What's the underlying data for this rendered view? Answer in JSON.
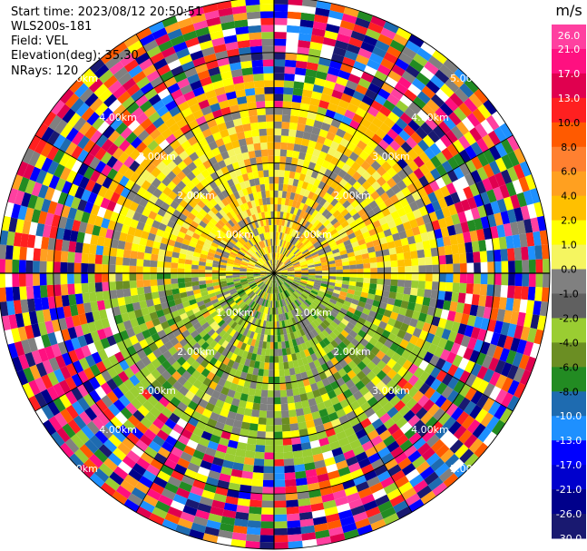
{
  "header": {
    "start_time": "Start time: 2023/08/12 20:50:51",
    "instrument": "WLS200s-181",
    "field": "Field: VEL",
    "elevation": "Elevation(deg): 35.30",
    "nrays": "NRays: 120"
  },
  "colorbar": {
    "unit": "m/s",
    "ticks": [
      "26.0",
      "21.0",
      "17.0",
      "13.0",
      "10.0",
      "8.0",
      "6.0",
      "4.0",
      "2.0",
      "1.0",
      "0.0",
      "-1.0",
      "-2.0",
      "-4.0",
      "-6.0",
      "-8.0",
      "-10.0",
      "-13.0",
      "-17.0",
      "-21.0",
      "-26.0",
      "-30.0"
    ],
    "colors": [
      "#ff40a0",
      "#ff1080",
      "#e0004f",
      "#ff2020",
      "#ff5a00",
      "#ff8030",
      "#ffa020",
      "#ffc000",
      "#ffff00",
      "#f5f560",
      "#808080",
      "#606060",
      "#9acd32",
      "#6b8e23",
      "#228b22",
      "#1e6bb0",
      "#1e90ff",
      "#0000ff",
      "#0000cd",
      "#00008b",
      "#191970"
    ]
  },
  "chart_data": {
    "type": "ppi",
    "title": "",
    "field": "VEL",
    "units": "m/s",
    "n_rays": 120,
    "elevation_deg": 35.3,
    "range_rings_km": [
      1.0,
      2.0,
      3.0,
      4.0,
      5.0
    ],
    "ring_labels": [
      "1.00km",
      "2.00km",
      "3.00km",
      "4.00km",
      "5.00km"
    ],
    "max_range_km": 5.0,
    "color_limits": [
      -30.0,
      26.0
    ]
  }
}
